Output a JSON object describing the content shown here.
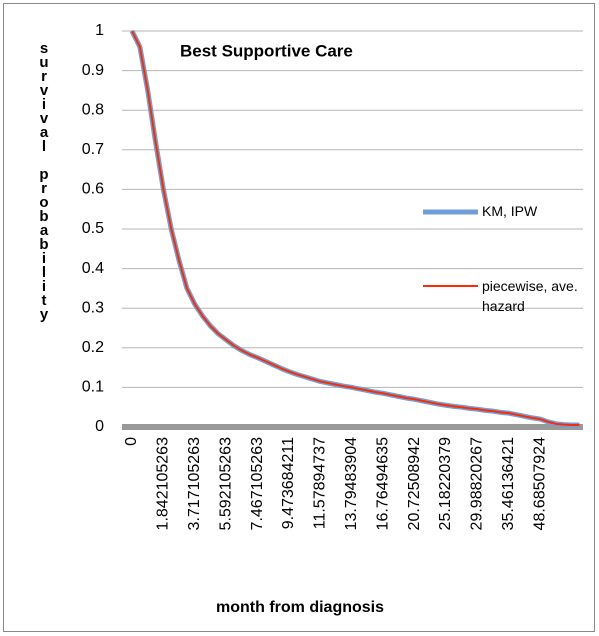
{
  "chart_data": {
    "type": "line",
    "title": "Best Supportive Care",
    "x_label": "month from diagnosis",
    "y_label": "survival probability",
    "categories": [
      "0",
      null,
      null,
      null,
      "1.842105263",
      null,
      null,
      null,
      "3.717105263",
      null,
      null,
      null,
      "5.592105263",
      null,
      null,
      null,
      "7.467105263",
      null,
      null,
      null,
      "9.473684211",
      null,
      null,
      null,
      "11.57894737",
      null,
      null,
      null,
      "13.79483904",
      null,
      null,
      null,
      "16.76494635",
      null,
      null,
      null,
      "20.72508942",
      null,
      null,
      null,
      "25.18220379",
      null,
      null,
      null,
      "29.98820267",
      null,
      null,
      null,
      "35.46136421",
      null,
      null,
      null,
      "48.68507924",
      null,
      null,
      null,
      null,
      null
    ],
    "series": [
      {
        "name": "KM, IPW",
        "color": "#6f9fd8",
        "values": [
          1.0,
          0.96,
          0.85,
          0.72,
          0.6,
          0.5,
          0.42,
          0.35,
          0.31,
          0.28,
          0.255,
          0.235,
          0.22,
          0.205,
          0.193,
          0.183,
          0.175,
          0.166,
          0.157,
          0.148,
          0.14,
          0.133,
          0.127,
          0.121,
          0.115,
          0.111,
          0.107,
          0.103,
          0.1,
          0.096,
          0.092,
          0.088,
          0.085,
          0.081,
          0.077,
          0.073,
          0.07,
          0.066,
          0.062,
          0.058,
          0.055,
          0.052,
          0.05,
          0.047,
          0.045,
          0.042,
          0.04,
          0.037,
          0.035,
          0.031,
          0.027,
          0.023,
          0.02,
          0.013,
          0.008,
          0.006,
          0.005,
          0.005
        ]
      },
      {
        "name": "piecewise, ave. hazard",
        "color": "#ff2a00",
        "values": [
          1.0,
          0.96,
          0.85,
          0.72,
          0.6,
          0.5,
          0.42,
          0.35,
          0.31,
          0.28,
          0.255,
          0.235,
          0.22,
          0.205,
          0.193,
          0.183,
          0.175,
          0.166,
          0.157,
          0.148,
          0.14,
          0.133,
          0.127,
          0.121,
          0.115,
          0.111,
          0.107,
          0.103,
          0.1,
          0.096,
          0.092,
          0.088,
          0.085,
          0.081,
          0.077,
          0.073,
          0.07,
          0.066,
          0.062,
          0.058,
          0.055,
          0.052,
          0.05,
          0.047,
          0.045,
          0.042,
          0.04,
          0.037,
          0.035,
          0.031,
          0.027,
          0.023,
          0.02,
          0.013,
          0.008,
          0.006,
          0.005,
          0.005
        ]
      }
    ],
    "ylim": [
      0,
      1
    ],
    "yticks": [
      0,
      0.1,
      0.2,
      0.3,
      0.4,
      0.5,
      0.6,
      0.7,
      0.8,
      0.9,
      1
    ],
    "grid": true
  }
}
